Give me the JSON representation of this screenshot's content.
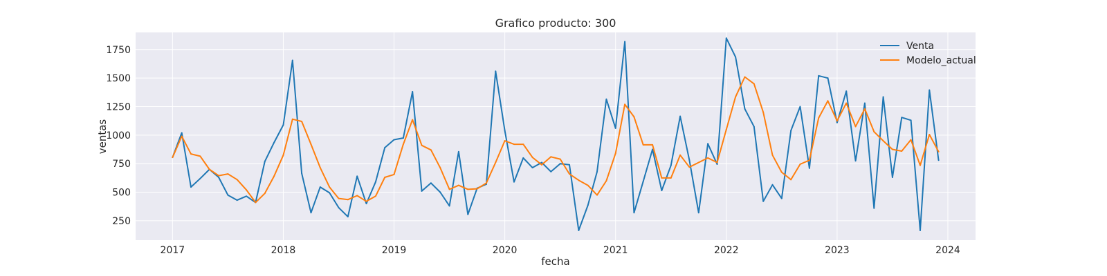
{
  "chart_data": {
    "type": "line",
    "title": "Grafico producto: 300",
    "xlabel": "fecha",
    "ylabel": "ventas",
    "x_tick_labels": [
      "2017",
      "2018",
      "2019",
      "2020",
      "2021",
      "2022",
      "2023",
      "2024"
    ],
    "y_ticks": [
      250,
      500,
      750,
      1000,
      1250,
      1500,
      1750
    ],
    "y_tick_labels": [
      "250",
      "500",
      "750",
      "1000",
      "1250",
      "1500",
      "1750"
    ],
    "xlim": [
      "2016-09",
      "2024-04"
    ],
    "ylim": [
      80,
      1900
    ],
    "grid": true,
    "legend_position": "top-right",
    "background": "#eaeaf2",
    "x": [
      "2017-01",
      "2017-02",
      "2017-03",
      "2017-04",
      "2017-05",
      "2017-06",
      "2017-07",
      "2017-08",
      "2017-09",
      "2017-10",
      "2017-11",
      "2017-12",
      "2018-01",
      "2018-02",
      "2018-03",
      "2018-04",
      "2018-05",
      "2018-06",
      "2018-07",
      "2018-08",
      "2018-09",
      "2018-10",
      "2018-11",
      "2018-12",
      "2019-01",
      "2019-02",
      "2019-03",
      "2019-04",
      "2019-05",
      "2019-06",
      "2019-07",
      "2019-08",
      "2019-09",
      "2019-10",
      "2019-11",
      "2019-12",
      "2020-01",
      "2020-02",
      "2020-03",
      "2020-04",
      "2020-05",
      "2020-06",
      "2020-07",
      "2020-08",
      "2020-09",
      "2020-10",
      "2020-11",
      "2020-12",
      "2021-01",
      "2021-02",
      "2021-03",
      "2021-04",
      "2021-05",
      "2021-06",
      "2021-07",
      "2021-08",
      "2021-09",
      "2021-10",
      "2021-11",
      "2021-12",
      "2022-01",
      "2022-02",
      "2022-03",
      "2022-04",
      "2022-05",
      "2022-06",
      "2022-07",
      "2022-08",
      "2022-09",
      "2022-10",
      "2022-11",
      "2022-12",
      "2023-01",
      "2023-02",
      "2023-03",
      "2023-04",
      "2023-05",
      "2023-06",
      "2023-07",
      "2023-08",
      "2023-09",
      "2023-10",
      "2023-11",
      "2023-12"
    ],
    "series": [
      {
        "name": "Venta",
        "color": "#1f77b4",
        "values": [
          805,
          1020,
          545,
          620,
          700,
          630,
          475,
          430,
          465,
          410,
          770,
          935,
          1090,
          1655,
          665,
          320,
          545,
          495,
          365,
          285,
          640,
          400,
          590,
          890,
          960,
          975,
          1380,
          510,
          580,
          500,
          380,
          855,
          305,
          535,
          570,
          1560,
          1040,
          590,
          800,
          715,
          760,
          680,
          750,
          740,
          165,
          385,
          680,
          1315,
          1060,
          1820,
          320,
          595,
          875,
          515,
          735,
          1165,
          780,
          320,
          925,
          745,
          1850,
          1685,
          1230,
          1075,
          420,
          565,
          445,
          1040,
          1250,
          710,
          1520,
          1500,
          1110,
          1385,
          775,
          1280,
          360,
          1335,
          630,
          1155,
          1130,
          165,
          1395,
          780
        ]
      },
      {
        "name": "Modelo_actual",
        "color": "#ff7f0e",
        "values": [
          805,
          990,
          835,
          815,
          700,
          645,
          660,
          610,
          520,
          410,
          490,
          640,
          825,
          1140,
          1120,
          920,
          715,
          545,
          445,
          435,
          470,
          420,
          465,
          630,
          655,
          920,
          1135,
          910,
          870,
          715,
          525,
          560,
          525,
          530,
          580,
          760,
          950,
          920,
          920,
          805,
          740,
          810,
          790,
          660,
          605,
          560,
          475,
          600,
          840,
          1270,
          1160,
          915,
          915,
          625,
          625,
          825,
          720,
          760,
          800,
          760,
          1050,
          1335,
          1510,
          1450,
          1200,
          825,
          675,
          610,
          745,
          780,
          1150,
          1300,
          1125,
          1280,
          1075,
          1230,
          1030,
          950,
          875,
          860,
          960,
          735,
          1005,
          855
        ]
      }
    ]
  }
}
